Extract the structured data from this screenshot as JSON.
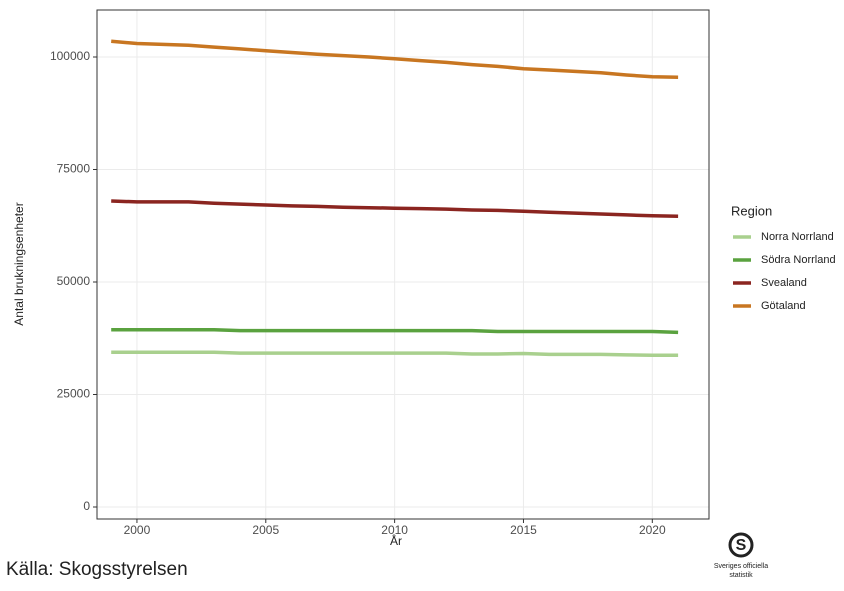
{
  "chart_data": {
    "type": "line",
    "x_label": "År",
    "y_label": "Antal brukningsenheter",
    "legend_title": "Region",
    "legend_position": "right",
    "grid": true,
    "x": [
      1999,
      2000,
      2001,
      2002,
      2003,
      2004,
      2005,
      2006,
      2007,
      2008,
      2009,
      2010,
      2011,
      2012,
      2013,
      2014,
      2015,
      2016,
      2017,
      2018,
      2019,
      2020,
      2021
    ],
    "series": [
      {
        "name": "Norra Norrland",
        "color": "#a9d08e",
        "values": [
          34400,
          34400,
          34400,
          34400,
          34400,
          34200,
          34200,
          34200,
          34200,
          34200,
          34200,
          34200,
          34200,
          34200,
          34000,
          34000,
          34100,
          33900,
          33900,
          33900,
          33800,
          33700,
          33700
        ]
      },
      {
        "name": "Södra Norrland",
        "color": "#5aa23f",
        "values": [
          39400,
          39400,
          39400,
          39400,
          39400,
          39200,
          39200,
          39200,
          39200,
          39200,
          39200,
          39200,
          39200,
          39200,
          39200,
          39000,
          39000,
          39000,
          39000,
          39000,
          39000,
          39000,
          38800
        ]
      },
      {
        "name": "Svealand",
        "color": "#8b2520",
        "values": [
          68000,
          67800,
          67800,
          67800,
          67500,
          67300,
          67100,
          66900,
          66800,
          66600,
          66500,
          66400,
          66300,
          66200,
          66000,
          65900,
          65700,
          65500,
          65300,
          65100,
          64900,
          64700,
          64600
        ]
      },
      {
        "name": "Götaland",
        "color": "#c87621",
        "values": [
          103500,
          103000,
          102800,
          102600,
          102200,
          101800,
          101400,
          101000,
          100600,
          100300,
          100000,
          99600,
          99200,
          98800,
          98300,
          97900,
          97400,
          97100,
          96800,
          96500,
          96000,
          95600,
          95500
        ]
      }
    ],
    "xlim": [
      1998.45,
      2022.2
    ],
    "xticks": [
      2000,
      2005,
      2010,
      2015,
      2020
    ],
    "ylim": [
      -2667,
      110444
    ],
    "yticks": [
      0,
      25000,
      50000,
      75000,
      100000
    ]
  },
  "source": "Källa: Skogsstyrelsen",
  "logo_text": [
    "Sveriges officiella",
    "statistik"
  ]
}
